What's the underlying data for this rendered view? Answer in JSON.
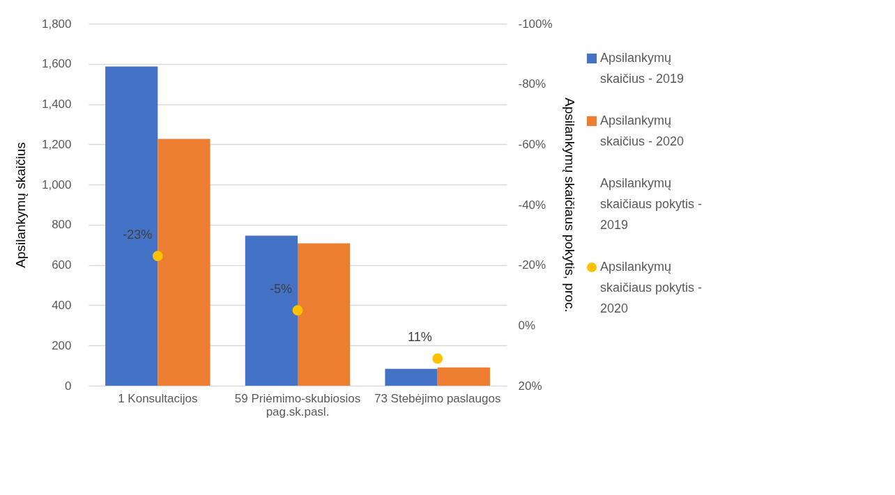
{
  "chart_data": {
    "type": "bar",
    "ylabel": "Apsilankymų skaičius",
    "y2label": "Apsilankymų skaičiaus pokytis, proc.",
    "categories": [
      "1 Konsultacijos",
      "59 Priėmimo-skubiosios pag.sk.pasl.",
      "73 Stebėjimo paslaugos"
    ],
    "series": [
      {
        "name": "Apsilankymų skaičius - 2019",
        "color": "#4472c4",
        "values": [
          1587,
          746,
          84
        ]
      },
      {
        "name": "Apsilankymų skaičius - 2020",
        "color": "#ed7d31",
        "values": [
          1227,
          708,
          91
        ]
      },
      {
        "name": "Apsilankymų skaičiaus pokytis - 2019",
        "type": "scatter",
        "axis": "y2",
        "values": [
          null,
          null,
          null
        ]
      },
      {
        "name": "Apsilankymų skaičiaus pokytis - 2020",
        "type": "scatter",
        "axis": "y2",
        "color": "#ffc000",
        "values": [
          -23,
          -5,
          11
        ],
        "value_labels": [
          "-23%",
          "-5%",
          "11%"
        ]
      }
    ],
    "ylim": [
      0,
      1800
    ],
    "yticks": [
      0,
      {
        "value": 200,
        "label": "200"
      },
      {
        "value": 400,
        "label": "400"
      },
      {
        "value": 600,
        "label": "600"
      },
      {
        "value": 800,
        "label": "800"
      },
      {
        "value": 1000,
        "label": "1,000"
      },
      {
        "value": 1200,
        "label": "1,200"
      },
      {
        "value": 1400,
        "label": "1,400"
      },
      {
        "value": 1600,
        "label": "1,600"
      },
      {
        "value": 1800,
        "label": "1,800"
      }
    ],
    "y2lim": [
      20,
      -100
    ],
    "y2ticks": [
      {
        "value": 20,
        "label": "20%"
      },
      {
        "value": 0,
        "label": "0%"
      },
      {
        "value": -20,
        "label": "-20%"
      },
      {
        "value": -40,
        "label": "-40%"
      },
      {
        "value": -60,
        "label": "-60%"
      },
      {
        "value": -80,
        "label": "-80%"
      },
      {
        "value": -100,
        "label": "-100%"
      }
    ],
    "grid": "y",
    "legend": "right",
    "marker": "circle"
  }
}
